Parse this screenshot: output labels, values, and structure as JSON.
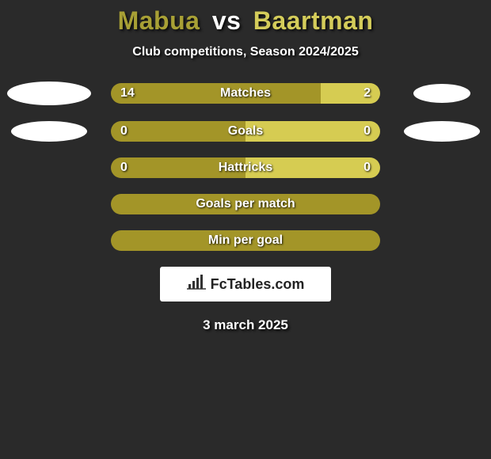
{
  "background_color": "#2a2a2a",
  "title": {
    "player1": "Mabua",
    "vs": "vs",
    "player2": "Baartman",
    "color_player1": "#a8a035",
    "color_vs": "#ffffff",
    "color_player2": "#d4cc5a"
  },
  "subtitle": "Club competitions, Season 2024/2025",
  "player1_color": "#a39528",
  "player2_color": "#d6cc52",
  "ellipse_color": "#ffffff",
  "rows": [
    {
      "type": "split",
      "label": "Matches",
      "left_value": "14",
      "right_value": "2",
      "left_pct": 78,
      "right_pct": 22,
      "left_ellipse": {
        "w": 106,
        "h": 30
      },
      "right_ellipse": {
        "w": 72,
        "h": 24
      }
    },
    {
      "type": "split",
      "label": "Goals",
      "left_value": "0",
      "right_value": "0",
      "left_pct": 50,
      "right_pct": 50,
      "left_ellipse": {
        "w": 96,
        "h": 26
      },
      "right_ellipse": {
        "w": 96,
        "h": 26
      }
    },
    {
      "type": "split",
      "label": "Hattricks",
      "left_value": "0",
      "right_value": "0",
      "left_pct": 50,
      "right_pct": 50,
      "left_ellipse": null,
      "right_ellipse": null
    },
    {
      "type": "full",
      "label": "Goals per match"
    },
    {
      "type": "full",
      "label": "Min per goal"
    }
  ],
  "logo": {
    "icon": "chart-icon",
    "text": "FcTables.com",
    "icon_color": "#333333",
    "bg": "#ffffff"
  },
  "date": "3 march 2025"
}
